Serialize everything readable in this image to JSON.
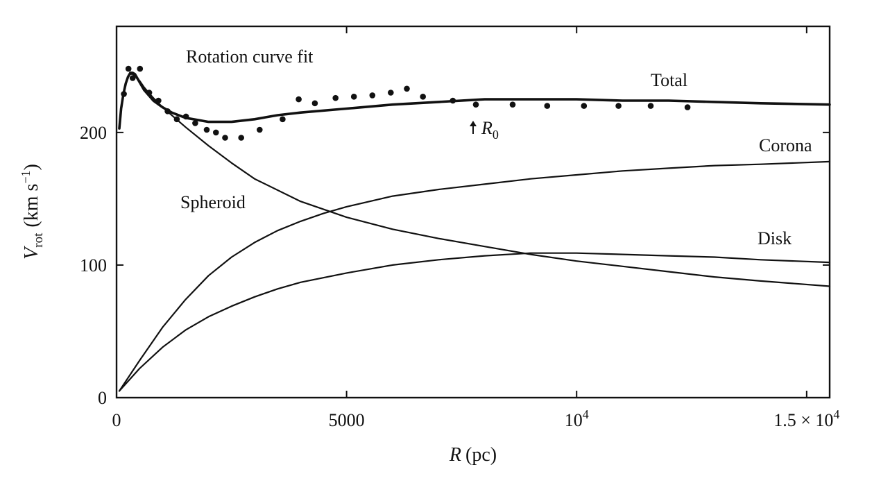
{
  "chart_data": {
    "type": "line",
    "title": "Rotation curve fit",
    "xlabel": {
      "symbol": "R",
      "unit": "(pc)"
    },
    "ylabel": {
      "symbol": "V",
      "subscript": "rot",
      "unit_open": "(km s",
      "unit_sup": "−1",
      "unit_close": ")"
    },
    "xlim": [
      0,
      15500
    ],
    "ylim": [
      0,
      280
    ],
    "grid": false,
    "legend": "none",
    "x_ticks": [
      {
        "value": 0,
        "label": "0"
      },
      {
        "value": 5000,
        "label": "5000"
      },
      {
        "value": 10000,
        "label": "10",
        "sup": "4"
      },
      {
        "value": 15000,
        "label": "1.5 × 10",
        "sup": "4"
      }
    ],
    "y_ticks": [
      {
        "value": 0,
        "label": "0"
      },
      {
        "value": 100,
        "label": "100"
      },
      {
        "value": 200,
        "label": "200"
      }
    ],
    "series": [
      {
        "name": "Total",
        "style": "bold",
        "x": [
          60,
          100,
          150,
          200,
          250,
          300,
          350,
          400,
          500,
          600,
          800,
          1000,
          1200,
          1500,
          2000,
          2500,
          3000,
          3500,
          4000,
          5000,
          6000,
          7000,
          8000,
          9000,
          10000,
          11000,
          12000,
          13000,
          14000,
          15500
        ],
        "y": [
          203,
          218,
          229,
          237,
          242,
          245,
          245,
          244,
          238,
          232,
          224,
          219,
          215,
          211,
          208,
          208,
          210,
          213,
          215,
          218,
          221,
          223,
          225,
          225,
          225,
          224,
          224,
          223,
          222,
          221
        ]
      },
      {
        "name": "Spheroid",
        "style": "thin",
        "x": [
          60,
          100,
          150,
          200,
          250,
          300,
          350,
          400,
          500,
          600,
          800,
          1000,
          1500,
          2000,
          2500,
          3000,
          4000,
          5000,
          6000,
          7000,
          8000,
          9000,
          10000,
          11000,
          12000,
          13000,
          14000,
          15500
        ],
        "y": [
          203,
          218,
          229,
          237,
          242,
          244,
          244,
          243,
          239,
          234,
          226,
          219,
          204,
          190,
          177,
          165,
          148,
          136,
          127,
          120,
          114,
          108,
          103,
          99,
          95,
          91,
          88,
          84
        ]
      },
      {
        "name": "Corona",
        "style": "thin",
        "x": [
          60,
          500,
          1000,
          1500,
          2000,
          2500,
          3000,
          3500,
          4000,
          4500,
          5000,
          6000,
          7000,
          8000,
          9000,
          10000,
          11000,
          12000,
          13000,
          14000,
          15500
        ],
        "y": [
          5,
          28,
          53,
          74,
          92,
          106,
          117,
          126,
          133,
          139,
          144,
          152,
          157,
          161,
          165,
          168,
          171,
          173,
          175,
          176,
          178
        ]
      },
      {
        "name": "Disk",
        "style": "thin",
        "x": [
          60,
          500,
          1000,
          1500,
          2000,
          2500,
          3000,
          3500,
          4000,
          5000,
          6000,
          7000,
          8000,
          9000,
          10000,
          11000,
          12000,
          13000,
          14000,
          15500
        ],
        "y": [
          5,
          22,
          38,
          51,
          61,
          69,
          76,
          82,
          87,
          94,
          100,
          104,
          107,
          109,
          109,
          108,
          107,
          106,
          104,
          102
        ]
      }
    ],
    "observed_points": {
      "x": [
        160,
        260,
        350,
        510,
        710,
        910,
        1110,
        1310,
        1510,
        1710,
        1960,
        2160,
        2360,
        2710,
        3110,
        3610,
        3960,
        4310,
        4760,
        5160,
        5560,
        5960,
        6310,
        6660,
        7310,
        7810,
        8610,
        9360,
        10160,
        10910,
        11610,
        12410
      ],
      "y": [
        229,
        248,
        241,
        248,
        230,
        224,
        216,
        210,
        212,
        207,
        202,
        200,
        196,
        196,
        202,
        210,
        225,
        222,
        226,
        227,
        228,
        230,
        233,
        227,
        224,
        221,
        221,
        220,
        220,
        220,
        220,
        219
      ]
    },
    "annotations": {
      "marker_label": {
        "symbol": "R",
        "subscript": "0",
        "x": 7800,
        "y": 204
      }
    }
  }
}
